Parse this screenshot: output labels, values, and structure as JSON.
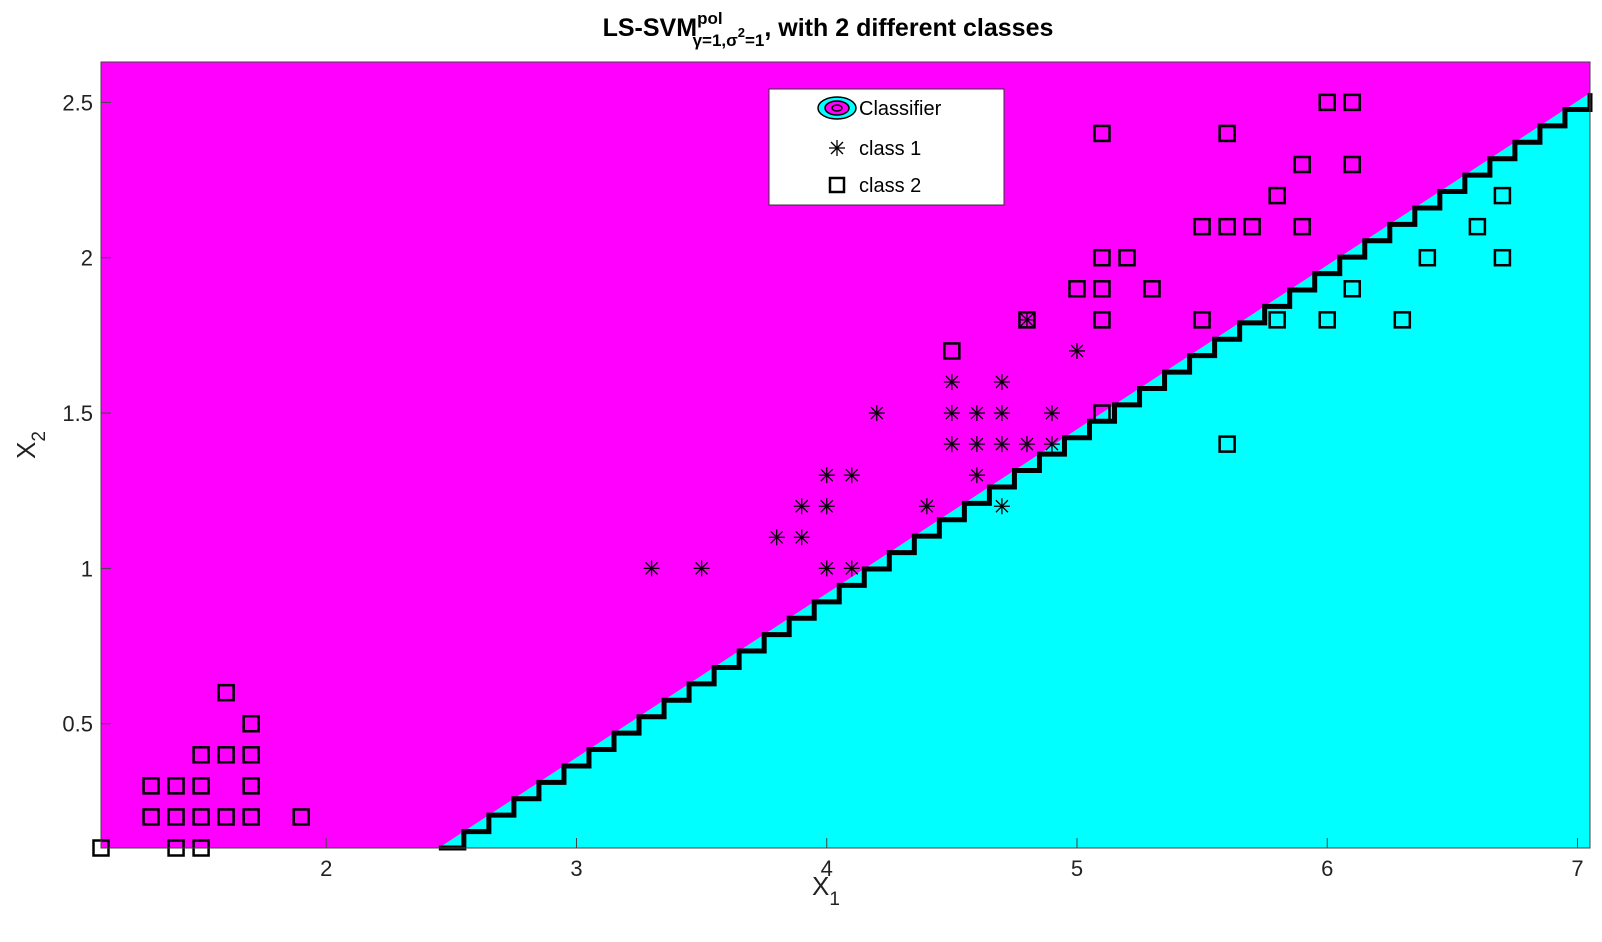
{
  "chart_data": {
    "type": "scatter",
    "title": {
      "main": "LS-SVM",
      "superscript": "pol",
      "subscript": "γ=1,σ",
      "sub_sup": "2",
      "sub_tail": "=1",
      "suffix": ", with 2 different classes"
    },
    "xlabel": {
      "base": "X",
      "sub": "1"
    },
    "ylabel": {
      "base": "X",
      "sub": "2"
    },
    "xlim": [
      1.1,
      7.05
    ],
    "ylim": [
      0.1,
      2.63
    ],
    "xticks": [
      2,
      3,
      4,
      5,
      6,
      7
    ],
    "yticks": [
      0.5,
      1,
      1.5,
      2,
      2.5
    ],
    "grid": false,
    "legend_position": "top-center",
    "regions": [
      {
        "name": "upper",
        "color": "#ff00ff"
      },
      {
        "name": "lower",
        "color": "#00ffff"
      }
    ],
    "decision_boundary": {
      "x": [
        2.45,
        7.05
      ],
      "y": [
        0.1,
        2.53
      ],
      "color": "#000000"
    },
    "legend": [
      {
        "label": "Classifier",
        "marker": "classifier-icon"
      },
      {
        "label": "class 1",
        "marker": "asterisk"
      },
      {
        "label": "class 2",
        "marker": "square"
      }
    ],
    "series": [
      {
        "name": "class 1",
        "marker": "asterisk",
        "points": [
          [
            3.3,
            1.0
          ],
          [
            3.5,
            1.0
          ],
          [
            3.8,
            1.1
          ],
          [
            3.9,
            1.1
          ],
          [
            3.9,
            1.2
          ],
          [
            4.0,
            1.2
          ],
          [
            4.0,
            1.3
          ],
          [
            4.1,
            1.3
          ],
          [
            4.0,
            1.0
          ],
          [
            4.1,
            1.0
          ],
          [
            4.2,
            1.5
          ],
          [
            4.4,
            1.2
          ],
          [
            4.5,
            1.4
          ],
          [
            4.5,
            1.5
          ],
          [
            4.5,
            1.6
          ],
          [
            4.6,
            1.3
          ],
          [
            4.6,
            1.4
          ],
          [
            4.6,
            1.5
          ],
          [
            4.7,
            1.2
          ],
          [
            4.7,
            1.4
          ],
          [
            4.7,
            1.5
          ],
          [
            4.7,
            1.6
          ],
          [
            4.8,
            1.4
          ],
          [
            4.8,
            1.8
          ],
          [
            4.9,
            1.4
          ],
          [
            4.9,
            1.5
          ],
          [
            5.0,
            1.7
          ]
        ]
      },
      {
        "name": "class 2",
        "marker": "square",
        "points": [
          [
            1.1,
            0.1
          ],
          [
            1.3,
            0.2
          ],
          [
            1.3,
            0.3
          ],
          [
            1.4,
            0.1
          ],
          [
            1.4,
            0.2
          ],
          [
            1.4,
            0.3
          ],
          [
            1.5,
            0.1
          ],
          [
            1.5,
            0.2
          ],
          [
            1.5,
            0.3
          ],
          [
            1.5,
            0.4
          ],
          [
            1.6,
            0.2
          ],
          [
            1.6,
            0.4
          ],
          [
            1.6,
            0.6
          ],
          [
            1.7,
            0.2
          ],
          [
            1.7,
            0.3
          ],
          [
            1.7,
            0.4
          ],
          [
            1.7,
            0.5
          ],
          [
            1.9,
            0.2
          ],
          [
            4.5,
            1.7
          ],
          [
            4.8,
            1.8
          ],
          [
            5.0,
            1.9
          ],
          [
            5.1,
            1.5
          ],
          [
            5.1,
            1.8
          ],
          [
            5.1,
            1.9
          ],
          [
            5.1,
            2.0
          ],
          [
            5.1,
            2.4
          ],
          [
            5.2,
            2.0
          ],
          [
            5.3,
            1.9
          ],
          [
            5.5,
            1.8
          ],
          [
            5.5,
            2.1
          ],
          [
            5.6,
            1.4
          ],
          [
            5.6,
            2.1
          ],
          [
            5.6,
            2.4
          ],
          [
            5.7,
            2.1
          ],
          [
            5.8,
            1.8
          ],
          [
            5.8,
            2.2
          ],
          [
            5.9,
            2.1
          ],
          [
            5.9,
            2.3
          ],
          [
            6.0,
            1.8
          ],
          [
            6.0,
            2.5
          ],
          [
            6.1,
            1.9
          ],
          [
            6.1,
            2.3
          ],
          [
            6.1,
            2.5
          ],
          [
            6.3,
            1.8
          ],
          [
            6.4,
            2.0
          ],
          [
            6.6,
            2.1
          ],
          [
            6.7,
            2.0
          ],
          [
            6.7,
            2.2
          ]
        ]
      }
    ]
  }
}
